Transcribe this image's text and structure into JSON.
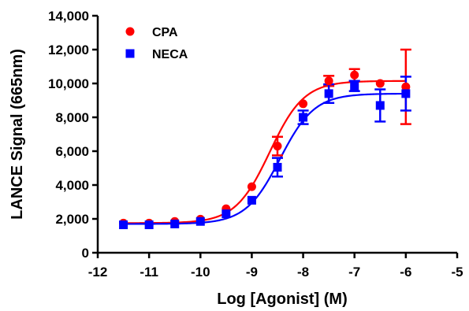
{
  "chart_data": {
    "type": "scatter",
    "title": "",
    "xlabel": "Log [Agonist] (M)",
    "ylabel": "LANCE Signal (665nm)",
    "xlim": [
      -12,
      -5
    ],
    "ylim": [
      0,
      14000
    ],
    "x_ticks": [
      -12,
      -11,
      -10,
      -9,
      -8,
      -7,
      -6,
      -5
    ],
    "x_tick_labels": [
      "-12",
      "-11",
      "-10",
      "-9",
      "-8",
      "-7",
      "-6",
      "-5"
    ],
    "y_ticks": [
      0,
      2000,
      4000,
      6000,
      8000,
      10000,
      12000,
      14000
    ],
    "y_tick_labels": [
      "0",
      "2,000",
      "4,000",
      "6,000",
      "8,000",
      "10,000",
      "12,000",
      "14,000"
    ],
    "grid": false,
    "legend_position": "top-left",
    "series": [
      {
        "name": "CPA",
        "color": "#ff0000",
        "marker": "circle",
        "points": [
          {
            "x": -11.5,
            "y": 1750,
            "err": 0
          },
          {
            "x": -11.0,
            "y": 1750,
            "err": 0
          },
          {
            "x": -10.5,
            "y": 1850,
            "err": 0
          },
          {
            "x": -10.0,
            "y": 1980,
            "err": 0
          },
          {
            "x": -9.5,
            "y": 2600,
            "err": 0
          },
          {
            "x": -9.0,
            "y": 3900,
            "err": 0
          },
          {
            "x": -8.5,
            "y": 6300,
            "err": 550
          },
          {
            "x": -8.0,
            "y": 8800,
            "err": 0
          },
          {
            "x": -7.5,
            "y": 10150,
            "err": 300
          },
          {
            "x": -7.0,
            "y": 10500,
            "err": 350
          },
          {
            "x": -6.5,
            "y": 10000,
            "err": 0
          },
          {
            "x": -6.0,
            "y": 9800,
            "err": 2200
          }
        ],
        "fit": {
          "bottom": 1750,
          "top": 10150,
          "logEC50": -8.65,
          "hill": 1.3
        }
      },
      {
        "name": "NECA",
        "color": "#0000ff",
        "marker": "square",
        "points": [
          {
            "x": -11.5,
            "y": 1650,
            "err": 0
          },
          {
            "x": -11.0,
            "y": 1650,
            "err": 0
          },
          {
            "x": -10.5,
            "y": 1700,
            "err": 0
          },
          {
            "x": -10.0,
            "y": 1850,
            "err": 0
          },
          {
            "x": -9.5,
            "y": 2300,
            "err": 0
          },
          {
            "x": -9.0,
            "y": 3100,
            "err": 0
          },
          {
            "x": -8.5,
            "y": 5050,
            "err": 550
          },
          {
            "x": -8.0,
            "y": 8000,
            "err": 400
          },
          {
            "x": -7.5,
            "y": 9400,
            "err": 550
          },
          {
            "x": -7.0,
            "y": 9850,
            "err": 300
          },
          {
            "x": -6.5,
            "y": 8700,
            "err": 950
          },
          {
            "x": -6.0,
            "y": 9400,
            "err": 1000
          }
        ],
        "fit": {
          "bottom": 1700,
          "top": 9400,
          "logEC50": -8.45,
          "hill": 1.3
        }
      }
    ]
  }
}
